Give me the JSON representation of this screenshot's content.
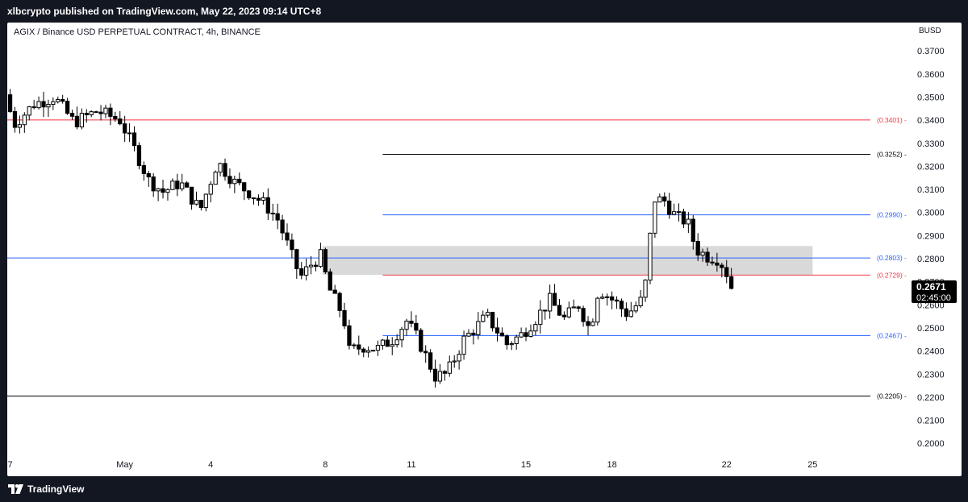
{
  "header": {
    "published_text": "xlbcrypto published on TradingView.com, May 22, 2023 09:14 UTC+8"
  },
  "footer": {
    "brand": "TradingView",
    "logo_icon": "tradingview-logo-icon"
  },
  "colors": {
    "up_candle": "#ffffff",
    "down_candle": "#000000",
    "red_level": "#f23645",
    "blue_level": "#2962ff",
    "black_level": "#000000",
    "zone_fill": "#d9d9d9",
    "price_label_bg": "#000000"
  },
  "chart_data": {
    "type": "candlestick",
    "title": "AGIX / Binance USD PERPETUAL CONTRACT, 4h, BINANCE",
    "currency_label": "BUSD",
    "ylim": [
      0.191,
      0.376
    ],
    "y_ticks": [
      "0.3700",
      "0.3600",
      "0.3500",
      "0.3400",
      "0.3300",
      "0.3200",
      "0.3100",
      "0.3000",
      "0.2900",
      "0.2800",
      "0.2700",
      "0.2600",
      "0.2500",
      "0.2400",
      "0.2300",
      "0.2200",
      "0.2100",
      "0.2000"
    ],
    "x_ticks": [
      {
        "label": "7",
        "day": -24
      },
      {
        "label": "May",
        "day": -20
      },
      {
        "label": "4",
        "day": -17
      },
      {
        "label": "8",
        "day": -13
      },
      {
        "label": "11",
        "day": -10
      },
      {
        "label": "15",
        "day": -6
      },
      {
        "label": "18",
        "day": -3
      },
      {
        "label": "22",
        "day": 1
      },
      {
        "label": "25",
        "day": 4
      }
    ],
    "x_day_range": [
      -24.1,
      7.2
    ],
    "horizontal_levels": [
      {
        "price": 0.3401,
        "label": "(0.3401)",
        "color": "red",
        "start_day": -24.1
      },
      {
        "price": 0.3252,
        "label": "(0.3252)",
        "color": "black",
        "start_day": -11.0
      },
      {
        "price": 0.299,
        "label": "(0.2990)",
        "color": "blue",
        "start_day": -11.0
      },
      {
        "price": 0.2803,
        "label": "(0.2803)",
        "color": "blue",
        "start_day": -24.1
      },
      {
        "price": 0.2729,
        "label": "(0.2729)",
        "color": "red",
        "start_day": -11.0
      },
      {
        "price": 0.2467,
        "label": "(0.2467)",
        "color": "blue",
        "start_day": -11.0
      },
      {
        "price": 0.2205,
        "label": "(0.2205)",
        "color": "black",
        "start_day": -24.1
      }
    ],
    "zone": {
      "top": 0.2855,
      "bottom": 0.273,
      "start_day": -13.1,
      "end_day": 4.0
    },
    "last_price": {
      "value": "0.2671",
      "countdown": "02:45:00",
      "price": 0.2671
    },
    "waypoints": [
      {
        "day": -24.0,
        "price": 0.351
      },
      {
        "day": -23.7,
        "price": 0.338
      },
      {
        "day": -23.0,
        "price": 0.347
      },
      {
        "day": -22.3,
        "price": 0.35
      },
      {
        "day": -21.6,
        "price": 0.339
      },
      {
        "day": -20.8,
        "price": 0.344
      },
      {
        "day": -20.0,
        "price": 0.34
      },
      {
        "day": -19.4,
        "price": 0.325
      },
      {
        "day": -19.0,
        "price": 0.314
      },
      {
        "day": -18.5,
        "price": 0.309
      },
      {
        "day": -17.9,
        "price": 0.313
      },
      {
        "day": -17.2,
        "price": 0.301
      },
      {
        "day": -17.0,
        "price": 0.308
      },
      {
        "day": -16.6,
        "price": 0.322
      },
      {
        "day": -16.0,
        "price": 0.313
      },
      {
        "day": -15.4,
        "price": 0.308
      },
      {
        "day": -14.9,
        "price": 0.303
      },
      {
        "day": -14.5,
        "price": 0.297
      },
      {
        "day": -14.0,
        "price": 0.281
      },
      {
        "day": -13.7,
        "price": 0.272
      },
      {
        "day": -13.3,
        "price": 0.278
      },
      {
        "day": -13.0,
        "price": 0.281
      },
      {
        "day": -12.7,
        "price": 0.267
      },
      {
        "day": -12.2,
        "price": 0.255
      },
      {
        "day": -12.0,
        "price": 0.24
      },
      {
        "day": -11.5,
        "price": 0.242
      },
      {
        "day": -11.0,
        "price": 0.241
      },
      {
        "day": -10.5,
        "price": 0.245
      },
      {
        "day": -10.0,
        "price": 0.253
      },
      {
        "day": -9.6,
        "price": 0.245
      },
      {
        "day": -9.0,
        "price": 0.229
      },
      {
        "day": -8.6,
        "price": 0.23
      },
      {
        "day": -8.0,
        "price": 0.245
      },
      {
        "day": -7.2,
        "price": 0.255
      },
      {
        "day": -6.5,
        "price": 0.243
      },
      {
        "day": -6.0,
        "price": 0.247
      },
      {
        "day": -5.5,
        "price": 0.254
      },
      {
        "day": -5.0,
        "price": 0.262
      },
      {
        "day": -4.5,
        "price": 0.254
      },
      {
        "day": -4.0,
        "price": 0.26
      },
      {
        "day": -3.6,
        "price": 0.249
      },
      {
        "day": -3.3,
        "price": 0.267
      },
      {
        "day": -2.7,
        "price": 0.261
      },
      {
        "day": -2.3,
        "price": 0.256
      },
      {
        "day": -1.8,
        "price": 0.262
      },
      {
        "day": -1.6,
        "price": 0.273
      },
      {
        "day": -1.4,
        "price": 0.306
      },
      {
        "day": -1.0,
        "price": 0.305
      },
      {
        "day": -0.6,
        "price": 0.298
      },
      {
        "day": -0.2,
        "price": 0.296
      },
      {
        "day": 0.1,
        "price": 0.284
      },
      {
        "day": 0.5,
        "price": 0.281
      },
      {
        "day": 0.9,
        "price": 0.28
      },
      {
        "day": 1.2,
        "price": 0.273
      },
      {
        "day": 1.3,
        "price": 0.2671
      }
    ]
  }
}
